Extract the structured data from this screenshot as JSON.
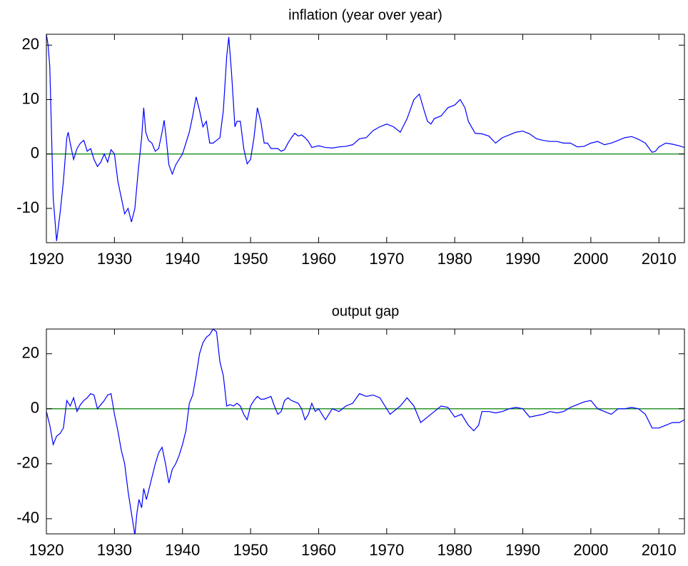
{
  "chart_data": [
    {
      "type": "line",
      "title": "inflation (year over year)",
      "color": "#0000ff",
      "hline": {
        "value": 0,
        "color": "#008000"
      },
      "xlim": [
        1920,
        2013.75
      ],
      "xticks": [
        1920,
        1930,
        1940,
        1950,
        1960,
        1970,
        1980,
        1990,
        2000,
        2010
      ],
      "ylim": [
        -16.3,
        22
      ],
      "yticks": [
        -10,
        0,
        10,
        20
      ],
      "x": [
        1920,
        1920.25,
        1920.5,
        1921,
        1921.5,
        1922,
        1922.5,
        1923,
        1923.2,
        1923.5,
        1924,
        1924.5,
        1925,
        1925.5,
        1926,
        1926.5,
        1927,
        1927.5,
        1928,
        1928.5,
        1929,
        1929.5,
        1930,
        1930.5,
        1931,
        1931.5,
        1932,
        1932.5,
        1933,
        1933.5,
        1934,
        1934.3,
        1934.6,
        1935,
        1935.5,
        1936,
        1936.5,
        1937,
        1937.3,
        1937.6,
        1938,
        1938.5,
        1939,
        1939.5,
        1940,
        1940.5,
        1941,
        1941.5,
        1942,
        1942.5,
        1943,
        1943.5,
        1944,
        1944.5,
        1945,
        1945.5,
        1946,
        1946.5,
        1946.8,
        1947.2,
        1947.7,
        1948,
        1948.5,
        1949,
        1949.5,
        1950,
        1950.5,
        1951,
        1951.5,
        1952,
        1952.5,
        1953,
        1953.5,
        1954,
        1954.5,
        1955,
        1955.5,
        1956,
        1956.5,
        1957,
        1957.5,
        1958,
        1958.5,
        1959,
        1960,
        1961,
        1962,
        1963,
        1964,
        1965,
        1966,
        1967,
        1968,
        1969,
        1970,
        1971,
        1972,
        1973,
        1974,
        1974.8,
        1975.5,
        1976,
        1976.5,
        1977,
        1978,
        1979,
        1980,
        1980.8,
        1981.5,
        1982,
        1983,
        1984,
        1985,
        1986,
        1987,
        1988,
        1989,
        1990,
        1991,
        1992,
        1993,
        1994,
        1995,
        1996,
        1997,
        1998,
        1999,
        2000,
        2001,
        2002,
        2003,
        2004,
        2005,
        2006,
        2007,
        2008,
        2009,
        2009.5,
        2010,
        2011,
        2012,
        2013,
        2013.75
      ],
      "values": [
        22,
        20,
        16,
        -8,
        -16,
        -11,
        -5,
        3,
        4,
        2,
        -1,
        1,
        2,
        2.5,
        0.5,
        1,
        -1,
        -2.3,
        -1.5,
        0,
        -1.5,
        0.8,
        0,
        -5,
        -8,
        -11,
        -10,
        -12.5,
        -10,
        -3,
        3,
        8.5,
        4,
        2.5,
        2,
        0.5,
        1,
        4,
        6.2,
        3,
        -2,
        -3.7,
        -2,
        -1,
        0,
        2,
        4,
        7,
        10.5,
        8,
        5,
        6,
        2,
        2,
        2.5,
        3,
        8,
        18,
        21.5,
        15,
        5,
        6,
        6,
        1,
        -1.8,
        -1,
        3,
        8.5,
        6,
        2,
        2,
        1,
        1,
        1,
        0.5,
        0.8,
        2,
        3,
        3.8,
        3.3,
        3.5,
        3,
        2.3,
        1.2,
        1.5,
        1.2,
        1.1,
        1.3,
        1.4,
        1.7,
        2.8,
        3,
        4.3,
        5,
        5.5,
        5,
        4,
        6.5,
        10,
        11,
        8,
        6,
        5.5,
        6.5,
        7,
        8.5,
        9,
        10,
        8.5,
        6,
        3.8,
        3.7,
        3.3,
        2,
        3,
        3.5,
        4,
        4.2,
        3.7,
        2.8,
        2.5,
        2.3,
        2.3,
        2,
        2,
        1.3,
        1.4,
        2,
        2.3,
        1.7,
        2,
        2.5,
        3,
        3.2,
        2.7,
        2,
        0.3,
        0.5,
        1.3,
        2,
        1.8,
        1.5,
        1.2
      ]
    },
    {
      "type": "line",
      "title": "output gap",
      "color": "#0000ff",
      "hline": {
        "value": 0,
        "color": "#008000"
      },
      "xlim": [
        1920,
        2013.75
      ],
      "xticks": [
        1920,
        1930,
        1940,
        1950,
        1960,
        1970,
        1980,
        1990,
        2000,
        2010
      ],
      "ylim": [
        -45.5,
        29
      ],
      "yticks": [
        -40,
        -20,
        0,
        20
      ],
      "x": [
        1920,
        1920.5,
        1921,
        1921.5,
        1922,
        1922.5,
        1923,
        1923.5,
        1924,
        1924.5,
        1925,
        1925.5,
        1926,
        1926.5,
        1927,
        1927.5,
        1928,
        1928.5,
        1929,
        1929.5,
        1930,
        1930.5,
        1931,
        1931.5,
        1932,
        1932.5,
        1933,
        1933.3,
        1933.6,
        1934,
        1934.3,
        1934.7,
        1935,
        1935.5,
        1936,
        1936.5,
        1937,
        1937.5,
        1938,
        1938.5,
        1939,
        1939.5,
        1940,
        1940.5,
        1941,
        1941.5,
        1942,
        1942.5,
        1943,
        1943.5,
        1944,
        1944.5,
        1945,
        1945.5,
        1946,
        1946.5,
        1947,
        1947.5,
        1948,
        1948.5,
        1949,
        1949.5,
        1950,
        1950.5,
        1951,
        1951.5,
        1952,
        1952.5,
        1953,
        1953.5,
        1954,
        1954.5,
        1955,
        1955.5,
        1956,
        1956.5,
        1957,
        1957.5,
        1958,
        1958.5,
        1959,
        1959.5,
        1960,
        1960.5,
        1961,
        1961.5,
        1962,
        1963,
        1964,
        1965,
        1966,
        1967,
        1968,
        1969,
        1970,
        1970.5,
        1971,
        1972,
        1973,
        1974,
        1975,
        1976,
        1977,
        1978,
        1979,
        1980,
        1981,
        1982,
        1982.8,
        1983.5,
        1984,
        1985,
        1986,
        1987,
        1988,
        1989,
        1990,
        1991,
        1992,
        1993,
        1994,
        1995,
        1996,
        1997,
        1998,
        1999,
        2000,
        2001,
        2002,
        2003,
        2004,
        2005,
        2006,
        2007,
        2008,
        2009,
        2010,
        2011,
        2012,
        2013,
        2013.75
      ],
      "values": [
        -1,
        -6,
        -13,
        -10,
        -9,
        -7,
        3,
        1,
        4,
        -1,
        1.5,
        3,
        4,
        5.5,
        5,
        0,
        1.5,
        3,
        5,
        5.5,
        -2,
        -8,
        -15,
        -20,
        -30,
        -38,
        -46,
        -38,
        -33,
        -36,
        -29,
        -33,
        -30,
        -25,
        -20,
        -16,
        -14,
        -20,
        -27,
        -22,
        -20,
        -17,
        -13,
        -8,
        2,
        5,
        12,
        20,
        24,
        26,
        27,
        29,
        28,
        17,
        12,
        1,
        1.5,
        1,
        2,
        1,
        -2,
        -4,
        1,
        3,
        4.5,
        3.5,
        3.5,
        4,
        4.5,
        1,
        -2,
        -1,
        3,
        4,
        3,
        2.5,
        2,
        0,
        -4,
        -2,
        2,
        -1,
        0,
        -2,
        -4,
        -2,
        0,
        -1,
        1,
        2,
        5.5,
        4.5,
        5,
        4,
        0,
        -2,
        -1,
        1,
        4,
        1,
        -5,
        -3,
        -1,
        1,
        0.5,
        -3,
        -2,
        -6,
        -8,
        -6,
        -1,
        -1,
        -1.5,
        -1,
        0,
        0.5,
        0,
        -3,
        -2.5,
        -2,
        -1,
        -1.5,
        -1,
        0.5,
        1.5,
        2.5,
        3,
        0,
        -1,
        -2,
        0,
        0,
        0.5,
        0,
        -2,
        -7,
        -7,
        -6,
        -5,
        -5,
        -4
      ]
    }
  ]
}
